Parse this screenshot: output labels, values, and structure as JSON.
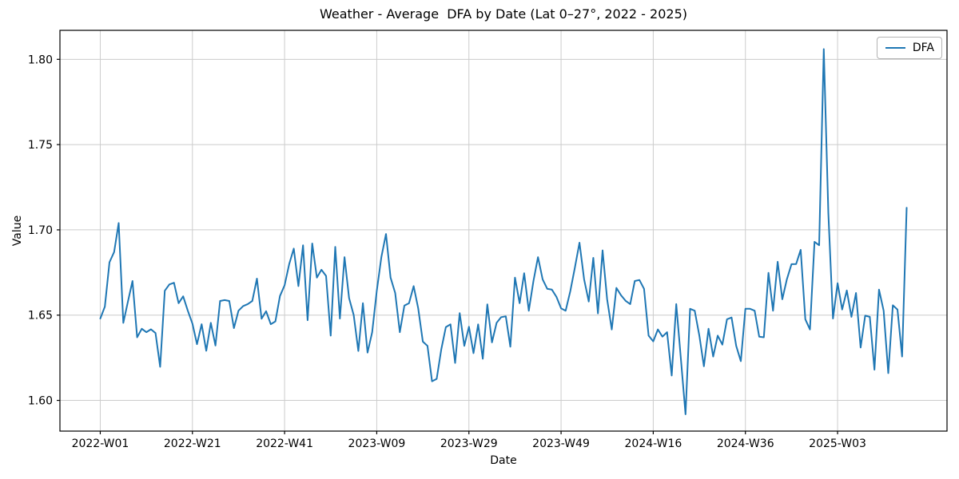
{
  "figure": {
    "title": "Weather - Average  DFA by Date (Lat 0–27°, 2022 - 2025)",
    "xlabel": "Date",
    "ylabel": "Value",
    "legend": {
      "label": "DFA"
    }
  },
  "colors": {
    "line": "#1f77b4",
    "grid": "#cccccc",
    "spine": "#000000",
    "background": "#ffffff",
    "legend_border": "#b3b3b3"
  },
  "chart_data": {
    "type": "line",
    "title": "Weather - Average  DFA by Date (Lat 0–27°, 2022 - 2025)",
    "xlabel": "Date",
    "ylabel": "Value",
    "grid": true,
    "legend_position": "upper right",
    "x_tick_step": 20,
    "x_tick_labels": [
      "2022-W01",
      "2022-W21",
      "2022-W41",
      "2023-W09",
      "2023-W29",
      "2023-W49",
      "2024-W16",
      "2024-W36",
      "2025-W03"
    ],
    "y_tick_labels": [
      "1.60",
      "1.65",
      "1.70",
      "1.75",
      "1.80"
    ],
    "ylim": [
      1.582,
      1.817
    ],
    "xmargin": 0.05,
    "x_unit": "week-index starting 2022-W01",
    "series": [
      {
        "name": "DFA",
        "color": "#1f77b4",
        "values": [
          1.648,
          1.655,
          1.681,
          1.687,
          1.704,
          1.6455,
          1.658,
          1.67,
          1.637,
          1.642,
          1.64,
          1.6417,
          1.6395,
          1.6197,
          1.6643,
          1.668,
          1.669,
          1.657,
          1.661,
          1.6526,
          1.645,
          1.633,
          1.6447,
          1.6291,
          1.6455,
          1.6322,
          1.6583,
          1.6588,
          1.6583,
          1.6424,
          1.6526,
          1.6553,
          1.6565,
          1.6583,
          1.6714,
          1.6479,
          1.6523,
          1.6447,
          1.6463,
          1.6612,
          1.6675,
          1.68,
          1.689,
          1.667,
          1.691,
          1.647,
          1.692,
          1.672,
          1.6766,
          1.673,
          1.638,
          1.69,
          1.648,
          1.684,
          1.66,
          1.65,
          1.629,
          1.657,
          1.628,
          1.64,
          1.664,
          1.684,
          1.6976,
          1.672,
          1.663,
          1.64,
          1.6556,
          1.657,
          1.667,
          1.654,
          1.6345,
          1.632,
          1.6112,
          1.6126,
          1.63,
          1.643,
          1.6446,
          1.622,
          1.6512,
          1.632,
          1.6432,
          1.6277,
          1.6446,
          1.6244,
          1.6563,
          1.634,
          1.6455,
          1.6488,
          1.6493,
          1.6315,
          1.672,
          1.657,
          1.6746,
          1.6526,
          1.67,
          1.684,
          1.671,
          1.6654,
          1.665,
          1.6607,
          1.654,
          1.6526,
          1.664,
          1.678,
          1.6925,
          1.671,
          1.658,
          1.6836,
          1.651,
          1.688,
          1.6593,
          1.6416,
          1.666,
          1.6617,
          1.6584,
          1.6565,
          1.67,
          1.6706,
          1.6654,
          1.638,
          1.6346,
          1.6416,
          1.6374,
          1.64,
          1.6146,
          1.6565,
          1.6243,
          1.5919,
          1.6537,
          1.6526,
          1.638,
          1.62,
          1.642,
          1.6257,
          1.638,
          1.6327,
          1.6476,
          1.6486,
          1.632,
          1.623,
          1.6537,
          1.6537,
          1.6526,
          1.6374,
          1.637,
          1.6748,
          1.6526,
          1.6813,
          1.6593,
          1.671,
          1.6799,
          1.68,
          1.6883,
          1.6476,
          1.6416,
          1.693,
          1.691,
          1.806,
          1.71,
          1.648,
          1.6687,
          1.6533,
          1.6645,
          1.649,
          1.663,
          1.631,
          1.6497,
          1.649,
          1.618,
          1.665,
          1.6526,
          1.616,
          1.6558,
          1.6533,
          1.6257,
          1.713
        ]
      }
    ]
  }
}
